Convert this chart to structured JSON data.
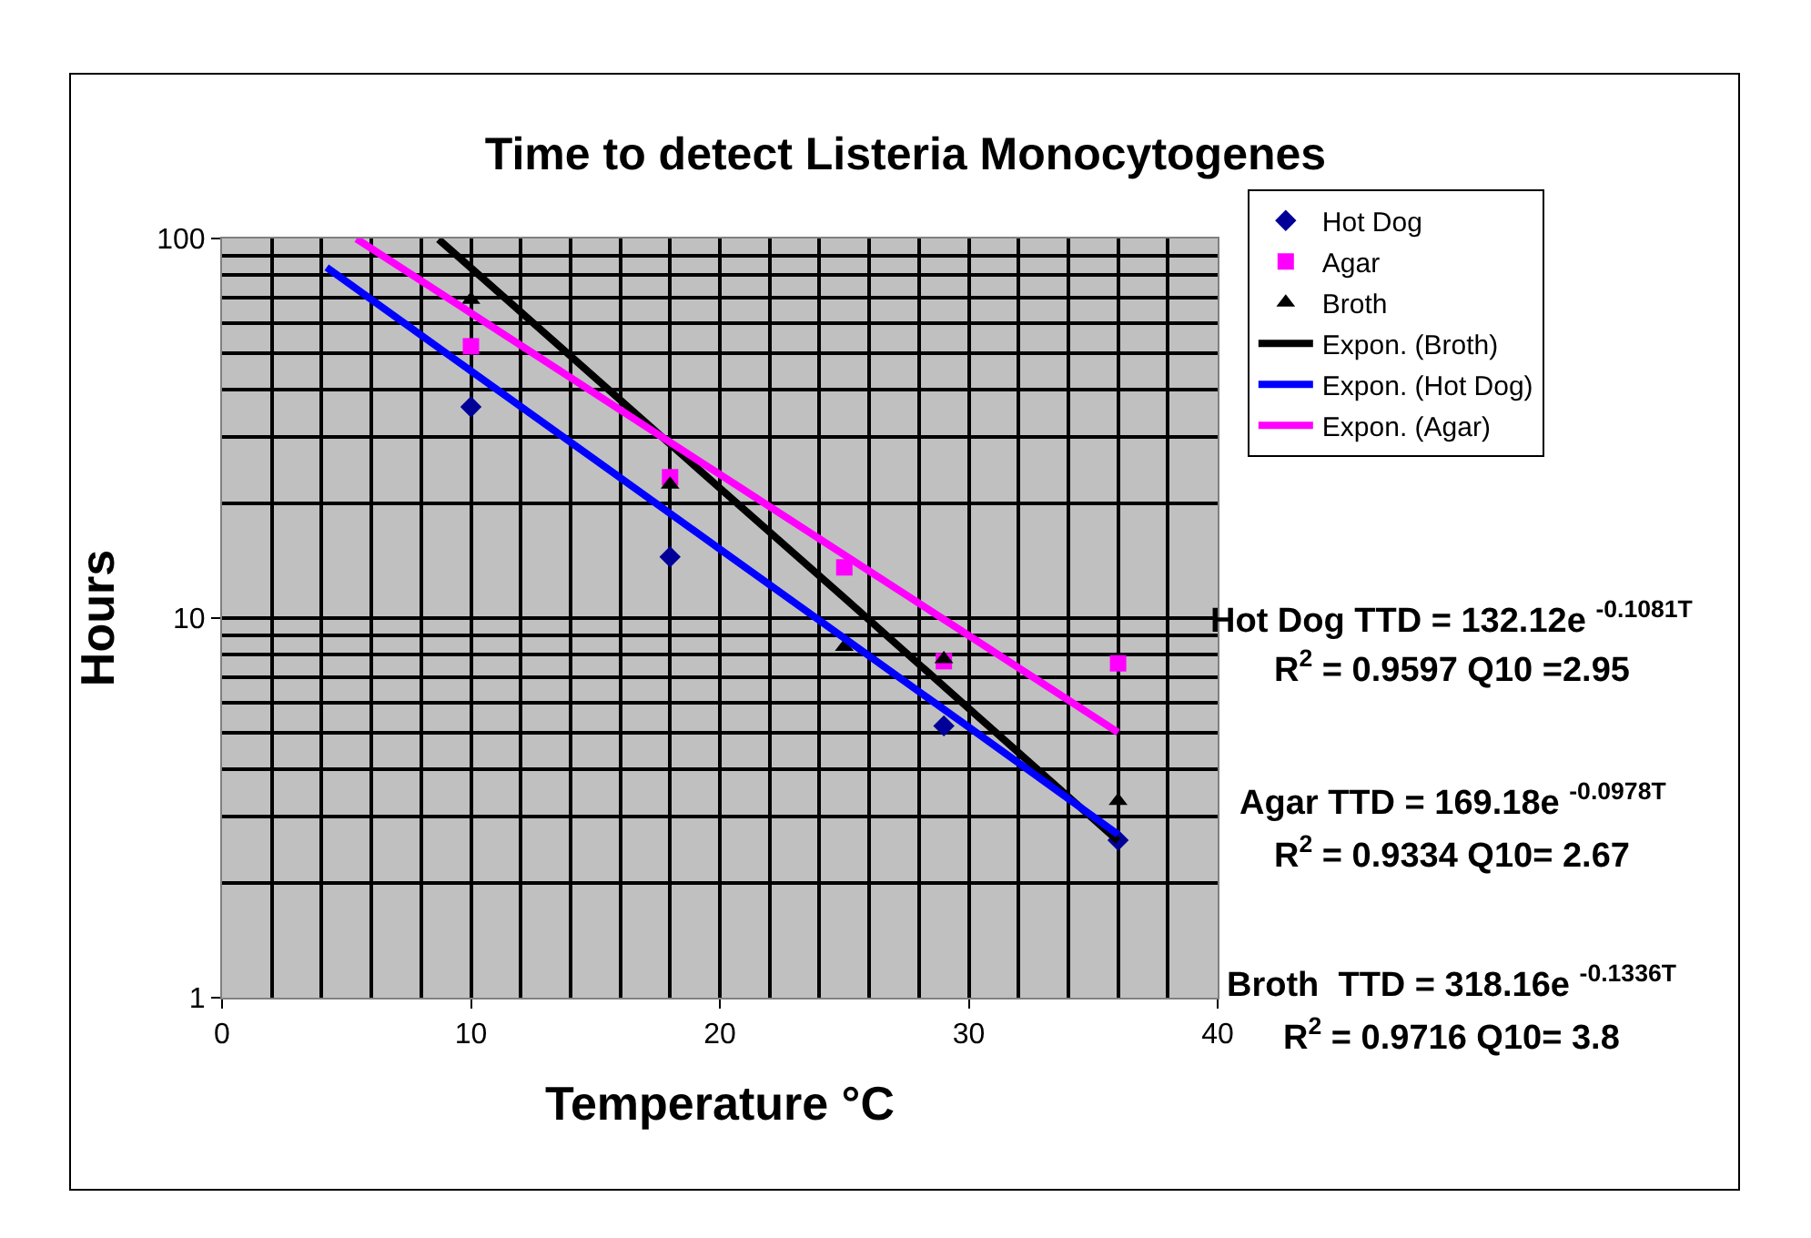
{
  "chart_data": {
    "type": "scatter",
    "title": "Time to detect Listeria Monocytogenes",
    "xlabel": "Temperature °C",
    "ylabel": "Hours",
    "log": "y",
    "xlim": [
      0,
      40
    ],
    "xticks": [
      0,
      10,
      20,
      30,
      40
    ],
    "ylim": [
      1,
      100
    ],
    "yticks": [
      1,
      10,
      100
    ],
    "grid": true,
    "legend": "top right",
    "series": [
      {
        "name": "Hot Dog",
        "marker": "diamond",
        "color": "#000099",
        "x": [
          10,
          18,
          25,
          29,
          36
        ],
        "values": [
          36,
          14.5,
          null,
          5.2,
          2.6
        ]
      },
      {
        "name": "Agar",
        "marker": "square",
        "color": "#ff00ff",
        "x": [
          10,
          18,
          25,
          29,
          36
        ],
        "values": [
          52,
          23.5,
          13.6,
          7.7,
          7.6
        ]
      },
      {
        "name": "Broth",
        "marker": "triangle",
        "color": "#000000",
        "x": [
          10,
          18,
          25,
          29,
          36
        ],
        "values": [
          69,
          22.5,
          8.4,
          7.8,
          3.3
        ]
      },
      {
        "name": "Expon. (Broth)",
        "type": "line",
        "marker": "none",
        "color": "#000000",
        "x": [
          8.7,
          15,
          20,
          25,
          30,
          36
        ],
        "values": [
          99.5,
          42.9,
          22.0,
          11.3,
          5.78,
          2.59
        ]
      },
      {
        "name": "Expon. (Hot Dog)",
        "type": "line",
        "marker": "none",
        "color": "#0000ff",
        "x": [
          4.2,
          10,
          20,
          30,
          36
        ],
        "values": [
          83.9,
          44.8,
          15.2,
          5.16,
          2.69
        ]
      },
      {
        "name": "Expon. (Agar)",
        "type": "line",
        "marker": "none",
        "color": "#ff00ff",
        "x": [
          5.4,
          10,
          20,
          30,
          36
        ],
        "values": [
          99.8,
          63.6,
          23.9,
          9.0,
          5.0
        ]
      }
    ],
    "annotations": [
      "Hot Dog TTD = 132.12e $^{-0.1081T}$",
      "R$^{2}$ = 0.9597 Q10 =2.95",
      "Agar TTD = 169.18e $^{-0.0978T}$",
      "R$^{2}$ = 0.9334 Q10= 2.67",
      "Broth  TTD = 318.16e $^{-0.1336T}$",
      "R$^{2}$ = 0.9716 Q10= 3.8"
    ]
  }
}
